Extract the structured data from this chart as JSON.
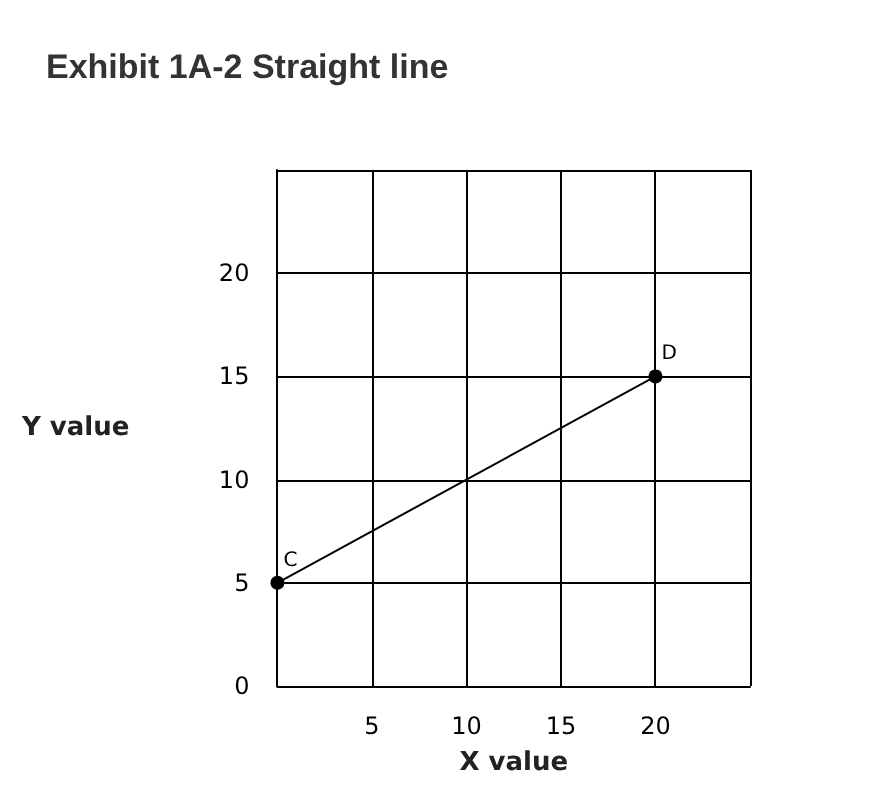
{
  "chart_data": {
    "type": "line",
    "title": "Exhibit 1A-2 Straight line",
    "xlabel": "X value",
    "ylabel": "Y value",
    "x": [
      0,
      20
    ],
    "series": [
      {
        "color": "#000000",
        "values": [
          5,
          15
        ]
      }
    ],
    "xlim": [
      0,
      25
    ],
    "ylim": [
      0,
      25
    ],
    "xticks": [
      {
        "value": 0,
        "label": null
      },
      5,
      10,
      15,
      20,
      {
        "value": 25,
        "label": null
      }
    ],
    "yticks": [
      0,
      5,
      10,
      15,
      20,
      {
        "value": 25,
        "label": null
      }
    ],
    "grid": true,
    "marker": "circle",
    "line_style": "solid",
    "annotations": [
      {
        "text": "C",
        "x": 0,
        "y": 5
      },
      {
        "text": "D",
        "x": 20,
        "y": 15
      }
    ]
  }
}
